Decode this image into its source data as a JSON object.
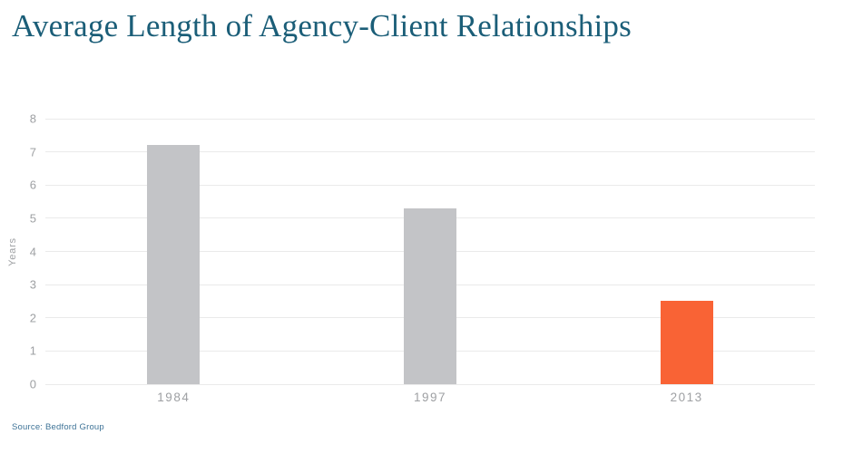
{
  "page": {
    "title": "Average Length of Agency-Client Relationships",
    "source": "Source: Bedford Group"
  },
  "colors": {
    "background": "#FFFFFF",
    "title_color": "#1B5E78",
    "axis_text": "#9EA0A3",
    "gridline": "#EAEAEA",
    "source_text": "#3E7397",
    "bar_default": "#C3C4C7",
    "bar_highlight": "#F96335"
  },
  "chart_data": {
    "type": "bar",
    "title": "Average Length of Agency-Client Relationships",
    "categories": [
      "1984",
      "1997",
      "2013"
    ],
    "values": [
      7.2,
      5.3,
      2.5
    ],
    "bar_colors": [
      "#C3C4C7",
      "#C3C4C7",
      "#F96335"
    ],
    "xlabel": "",
    "ylabel": "Years",
    "ylim": [
      0,
      8
    ],
    "yticks": [
      0,
      1,
      2,
      3,
      4,
      5,
      6,
      7,
      8
    ],
    "grid": true,
    "legend": false,
    "source": "Source: Bedford Group"
  }
}
